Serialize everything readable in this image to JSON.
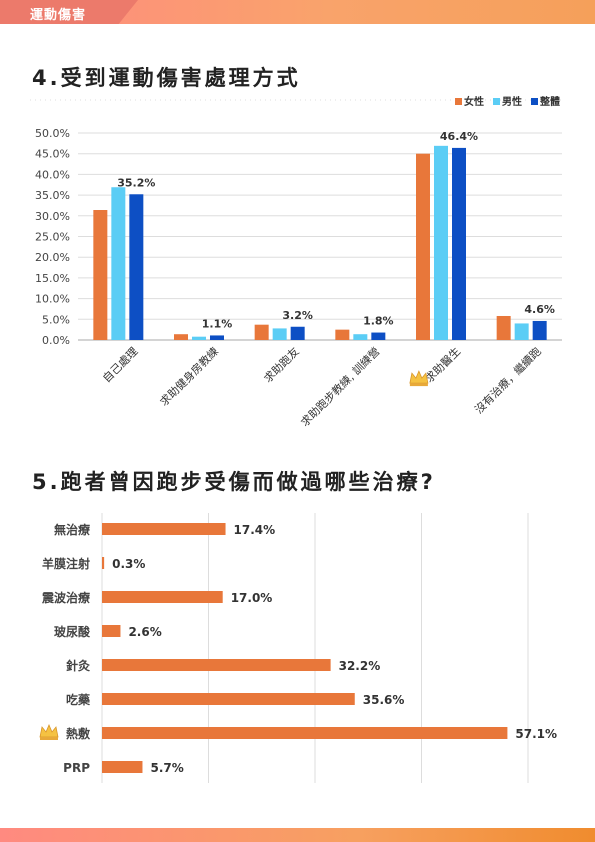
{
  "header": {
    "tag_label": "運動傷害"
  },
  "section4": {
    "title": "4.受到運動傷害處理方式"
  },
  "section5": {
    "title": "5.跑者曾因跑步受傷而做過哪些治療?"
  },
  "colors": {
    "female": "#e8773a",
    "male": "#5bcdf5",
    "overall": "#0d4fc4",
    "accent": "#e8773a"
  },
  "icons": {
    "top_choice": "crown-icon"
  },
  "chart_data": [
    {
      "type": "bar",
      "orientation": "vertical",
      "categories": [
        "自己處理",
        "求助健身房教練",
        "求助跑友",
        "求助跑步教練, 訓練營",
        "求助醫生",
        "沒有治療，繼續跑"
      ],
      "series": [
        {
          "name": "女性",
          "values": [
            31.4,
            1.4,
            3.7,
            2.5,
            45.0,
            5.8
          ]
        },
        {
          "name": "男性",
          "values": [
            36.9,
            0.8,
            2.8,
            1.4,
            46.9,
            4.0
          ]
        },
        {
          "name": "整體",
          "values": [
            35.2,
            1.1,
            3.2,
            1.8,
            46.4,
            4.6
          ]
        }
      ],
      "data_labels": [
        "35.2%",
        "1.1%",
        "3.2%",
        "1.8%",
        "46.4%",
        "4.6%"
      ],
      "yticks": [
        "0.0%",
        "5.0%",
        "10.0%",
        "15.0%",
        "20.0%",
        "25.0%",
        "30.0%",
        "35.0%",
        "40.0%",
        "45.0%",
        "50.0%"
      ],
      "ylim": [
        0,
        50
      ],
      "highlight_category": "求助醫生",
      "legend_position": "top-right",
      "grid": true
    },
    {
      "type": "bar",
      "orientation": "horizontal",
      "categories": [
        "無治療",
        "羊膜注射",
        "震波治療",
        "玻尿酸",
        "針灸",
        "吃藥",
        "熱敷",
        "PRP"
      ],
      "values": [
        17.4,
        0.3,
        17.0,
        2.6,
        32.2,
        35.6,
        57.1,
        5.7
      ],
      "data_labels": [
        "17.4%",
        "0.3%",
        "17.0%",
        "2.6%",
        "32.2%",
        "35.6%",
        "57.1%",
        "5.7%"
      ],
      "xlim": [
        0,
        60
      ],
      "highlight_category": "熱敷",
      "grid": true
    }
  ]
}
